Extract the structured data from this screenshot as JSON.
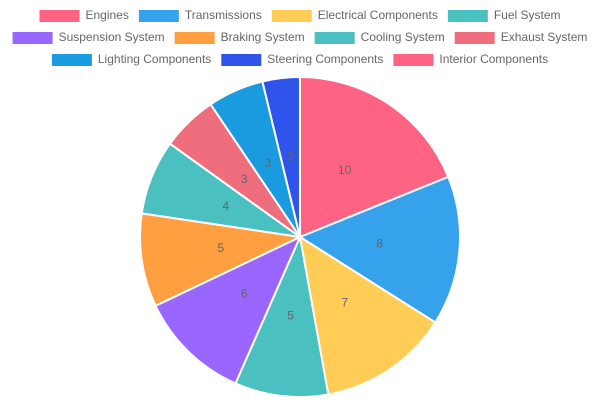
{
  "chart_data": {
    "type": "pie",
    "categories": [
      "Engines",
      "Transmissions",
      "Electrical Components",
      "Fuel System",
      "Suspension System",
      "Braking System",
      "Cooling System",
      "Exhaust System",
      "Lighting Components",
      "Steering Components",
      "Interior Components"
    ],
    "values": [
      10,
      8,
      7,
      5,
      6,
      5,
      4,
      3,
      3,
      2,
      0
    ],
    "colors": [
      "#ff6384",
      "#36a2eb",
      "#ffcd56",
      "#4bc0c0",
      "#9966ff",
      "#ff9f40",
      "#4bc0c0",
      "#ee6e7e",
      "#1a9be0",
      "#2f54eb",
      "#ff6384"
    ],
    "legend": "top"
  }
}
